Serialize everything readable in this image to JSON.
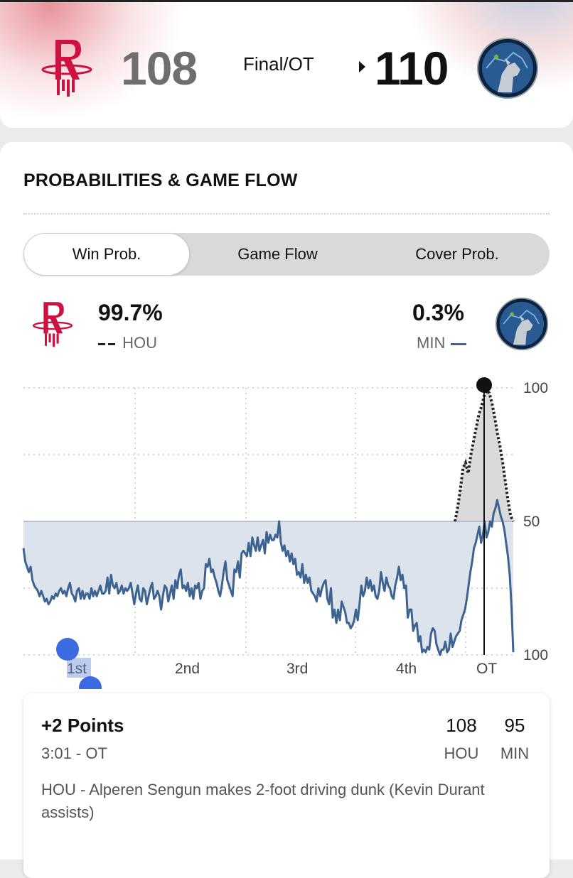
{
  "header": {
    "away_team": "HOU",
    "home_team": "MIN",
    "away_score": "108",
    "home_score": "110",
    "status": "Final/OT",
    "away_logo": "rockets-logo",
    "home_logo": "timberwolves-logo",
    "colors": {
      "hou": "#ce1141",
      "min": "#3d6391",
      "min_dark": "#0c2340"
    }
  },
  "section": {
    "title": "PROBABILITIES & GAME FLOW"
  },
  "tabs": [
    {
      "label": "Win Prob.",
      "active": true
    },
    {
      "label": "Game Flow",
      "active": false
    },
    {
      "label": "Cover Prob.",
      "active": false
    }
  ],
  "probabilities": {
    "hou": {
      "pct": "99.7%",
      "abbr": "HOU",
      "line_style": "dashed"
    },
    "min": {
      "pct": "0.3%",
      "abbr": "MIN",
      "line_style": "solid"
    }
  },
  "chart_data": {
    "type": "line",
    "y_ticks": [
      "100",
      "50",
      "100"
    ],
    "x_ticks": [
      "1st",
      "2nd",
      "3rd",
      "4th",
      "OT"
    ],
    "grid": true,
    "series": [
      {
        "name": "MIN",
        "color": "#3d6391",
        "values": [
          40,
          35,
          33,
          31,
          33,
          28,
          26,
          25,
          24,
          22,
          24,
          22,
          20,
          21,
          19,
          20,
          22,
          21,
          23,
          22,
          24,
          25,
          23,
          24,
          22,
          25,
          27,
          23,
          22,
          20,
          24,
          25,
          21,
          24,
          21,
          23,
          23,
          21,
          25,
          22,
          24,
          22,
          24,
          26,
          23,
          23,
          24,
          29,
          23,
          30,
          26,
          25,
          27,
          23,
          24,
          26,
          23,
          25,
          24,
          25,
          27,
          23,
          19,
          23,
          26,
          21,
          20,
          25,
          24,
          19,
          22,
          25,
          27,
          21,
          22,
          24,
          22,
          17,
          22,
          26,
          25,
          20,
          23,
          26,
          21,
          28,
          25,
          30,
          32,
          25,
          26,
          24,
          27,
          22,
          25,
          21,
          26,
          25,
          27,
          21,
          24,
          25,
          34,
          33,
          36,
          31,
          32,
          29,
          27,
          24,
          22,
          26,
          31,
          35,
          28,
          26,
          24,
          22,
          32,
          31,
          35,
          29,
          38,
          39,
          38,
          37,
          42,
          37,
          44,
          41,
          39,
          44,
          39,
          41,
          43,
          38,
          46,
          42,
          45,
          43,
          43,
          45,
          44,
          50,
          42,
          39,
          41,
          37,
          39,
          35,
          38,
          34,
          36,
          30,
          31,
          29,
          34,
          27,
          30,
          27,
          29,
          24,
          23,
          22,
          20,
          25,
          22,
          25,
          27,
          28,
          21,
          19,
          25,
          14,
          17,
          12,
          17,
          13,
          20,
          18,
          16,
          12,
          12,
          10,
          11,
          13,
          17,
          13,
          19,
          26,
          22,
          24,
          29,
          25,
          28,
          24,
          26,
          22,
          21,
          24,
          31,
          27,
          24,
          29,
          26,
          25,
          22,
          21,
          26,
          29,
          33,
          28,
          30,
          25,
          26,
          14,
          17,
          17,
          9,
          11,
          12,
          5,
          7,
          1,
          2,
          1,
          3,
          2,
          8,
          10,
          9,
          4,
          2,
          0,
          2,
          2,
          5,
          1,
          2,
          8,
          3,
          5,
          7,
          8,
          9,
          13,
          15,
          17,
          21,
          26,
          31,
          35,
          40,
          42,
          45,
          48,
          42,
          45,
          50,
          44,
          46,
          50,
          48,
          53,
          55,
          58,
          55,
          52,
          50,
          47,
          42,
          37,
          30,
          18,
          1
        ]
      },
      {
        "name": "HOU",
        "style": "dashed",
        "color": "#222222",
        "ot_values": [
          50,
          55,
          62,
          70,
          72,
          68,
          75,
          80,
          85,
          90,
          93,
          97,
          99,
          98,
          94,
          89,
          83,
          78,
          72,
          65,
          58,
          52,
          50
        ]
      }
    ],
    "ylim": [
      0,
      100
    ]
  },
  "scrubber_label": "1st",
  "play": {
    "title": "+2 Points",
    "time": "3:01 - OT",
    "hou_score": "108",
    "min_score": "95",
    "hou_abbr": "HOU",
    "min_abbr": "MIN",
    "description": "HOU - Alperen Sengun makes 2-foot driving dunk (Kevin Durant assists)"
  }
}
